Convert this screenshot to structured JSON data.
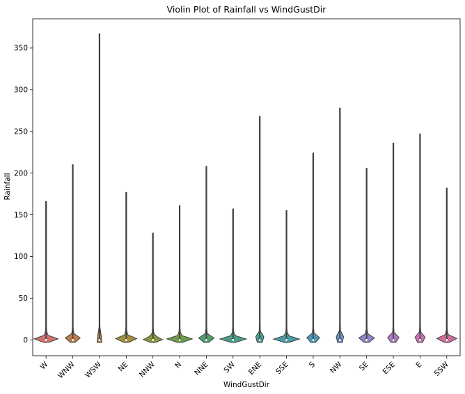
{
  "chart_data": {
    "type": "violin",
    "title": "Violin Plot of Rainfall vs WindGustDir",
    "xlabel": "WindGustDir",
    "ylabel": "Rainfall",
    "ylim": [
      -19,
      385
    ],
    "yticks": [
      0,
      50,
      100,
      150,
      200,
      250,
      300,
      350
    ],
    "grid": false,
    "categories": [
      "W",
      "WNW",
      "WSW",
      "NE",
      "NNW",
      "N",
      "NNE",
      "SW",
      "ENE",
      "SSE",
      "S",
      "NW",
      "SE",
      "ESE",
      "E",
      "SSW"
    ],
    "series": [
      {
        "category": "W",
        "min": 0,
        "max": 166.0,
        "color": "#d1726e"
      },
      {
        "category": "WNW",
        "min": 0,
        "max": 210.0,
        "color": "#c27c4a"
      },
      {
        "category": "WSW",
        "min": 0,
        "max": 367.0,
        "color": "#b7863e"
      },
      {
        "category": "NE",
        "min": 0,
        "max": 177.0,
        "color": "#a08f3c"
      },
      {
        "category": "NNW",
        "min": 0,
        "max": 128.0,
        "color": "#8d973d"
      },
      {
        "category": "N",
        "min": 0,
        "max": 161.0,
        "color": "#6e9d4e"
      },
      {
        "category": "NNE",
        "min": 0,
        "max": 208.0,
        "color": "#4ea06c"
      },
      {
        "category": "SW",
        "min": 0,
        "max": 157.0,
        "color": "#4a9f86"
      },
      {
        "category": "ENE",
        "min": 0,
        "max": 268.0,
        "color": "#4a9d97"
      },
      {
        "category": "SSE",
        "min": 0,
        "max": 155.0,
        "color": "#4b9ca6"
      },
      {
        "category": "S",
        "min": 0,
        "max": 224.0,
        "color": "#4d97b6"
      },
      {
        "category": "NW",
        "min": 0,
        "max": 278.0,
        "color": "#6e8fc9"
      },
      {
        "category": "SE",
        "min": 0,
        "max": 206.0,
        "color": "#9384c8"
      },
      {
        "category": "ESE",
        "min": 0,
        "max": 236.0,
        "color": "#b27ac3"
      },
      {
        "category": "E",
        "min": 0,
        "max": 247.0,
        "color": "#c874b2"
      },
      {
        "category": "SSW",
        "min": 0,
        "max": 182.0,
        "color": "#d0709a"
      }
    ]
  }
}
